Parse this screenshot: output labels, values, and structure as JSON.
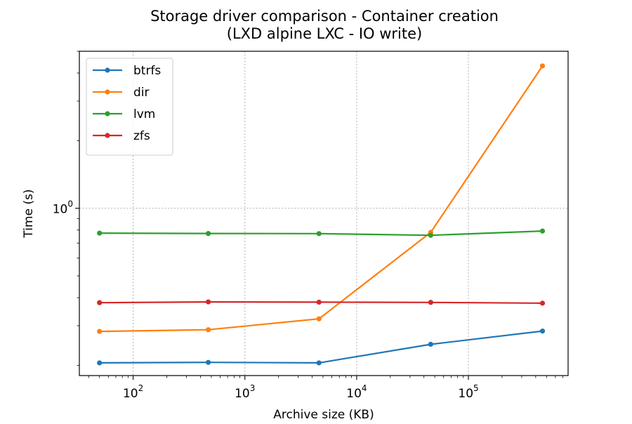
{
  "chart_data": {
    "type": "line",
    "title": "Storage driver comparison - Container creation\n(LXD alpine LXC - IO write)",
    "xlabel": "Archive size (KB)",
    "ylabel": "Time (s)",
    "xscale": "log",
    "yscale": "log",
    "xlim": [
      33,
      780000
    ],
    "ylim": [
      0.18,
      5.0
    ],
    "grid": true,
    "legend_placement": "top-left",
    "x_major_ticks": [
      {
        "value": 100,
        "base": "10",
        "exp": "2"
      },
      {
        "value": 1000,
        "base": "10",
        "exp": "3"
      },
      {
        "value": 10000,
        "base": "10",
        "exp": "4"
      },
      {
        "value": 100000,
        "base": "10",
        "exp": "5"
      }
    ],
    "y_major_ticks": [
      {
        "value": 1,
        "base": "10",
        "exp": "0"
      }
    ],
    "x": [
      50,
      470,
      4600,
      46000,
      460000
    ],
    "series": [
      {
        "name": "btrfs",
        "color": "#1f77b4",
        "values": [
          0.205,
          0.206,
          0.205,
          0.248,
          0.284
        ]
      },
      {
        "name": "dir",
        "color": "#ff7f0e",
        "values": [
          0.283,
          0.288,
          0.322,
          0.781,
          4.3
        ]
      },
      {
        "name": "lvm",
        "color": "#2ca02c",
        "values": [
          0.775,
          0.772,
          0.771,
          0.758,
          0.792
        ]
      },
      {
        "name": "zfs",
        "color": "#d62728",
        "values": [
          0.38,
          0.383,
          0.382,
          0.381,
          0.378
        ]
      }
    ]
  }
}
